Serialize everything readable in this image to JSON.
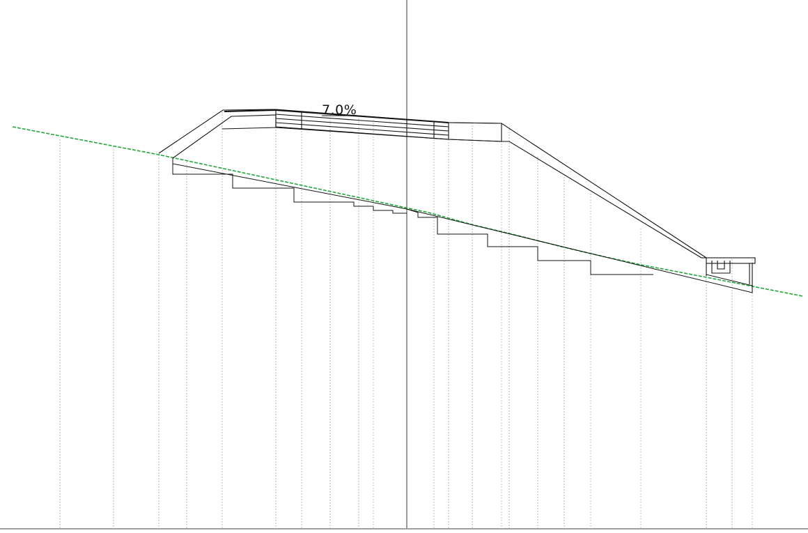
{
  "drawing": {
    "slope_label": "7.0%"
  },
  "colors": {
    "background": "#ffffff",
    "ground_line": "#22a83a",
    "structure_line": "#111111",
    "grid_line": "#b8b8b8",
    "center_line": "#333333",
    "base_line": "#666666"
  }
}
